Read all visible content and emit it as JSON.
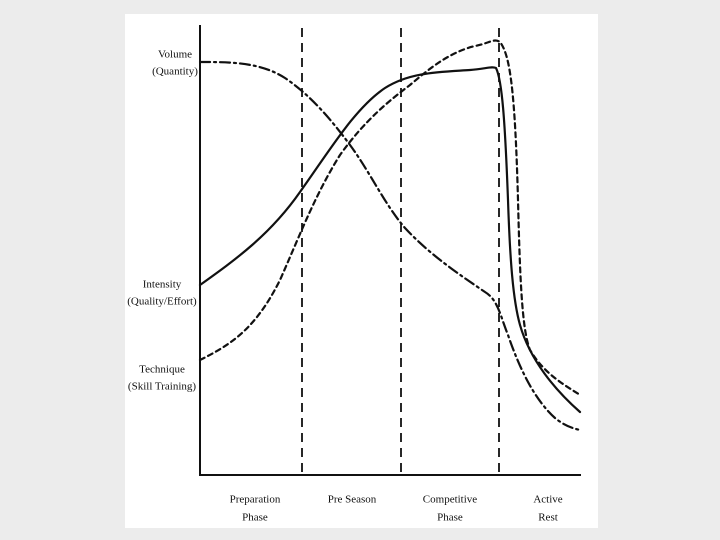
{
  "y_labels": [
    [
      "Volume",
      "(Quantity)"
    ],
    [
      "Intensity",
      "(Quality/Effort)"
    ],
    [
      "Technique",
      "(Skill Training)"
    ]
  ],
  "phases": [
    [
      "Preparation",
      "Phase"
    ],
    [
      "Pre Season"
    ],
    [
      "Competitive",
      "Phase"
    ],
    [
      "Active",
      "Rest"
    ]
  ]
}
